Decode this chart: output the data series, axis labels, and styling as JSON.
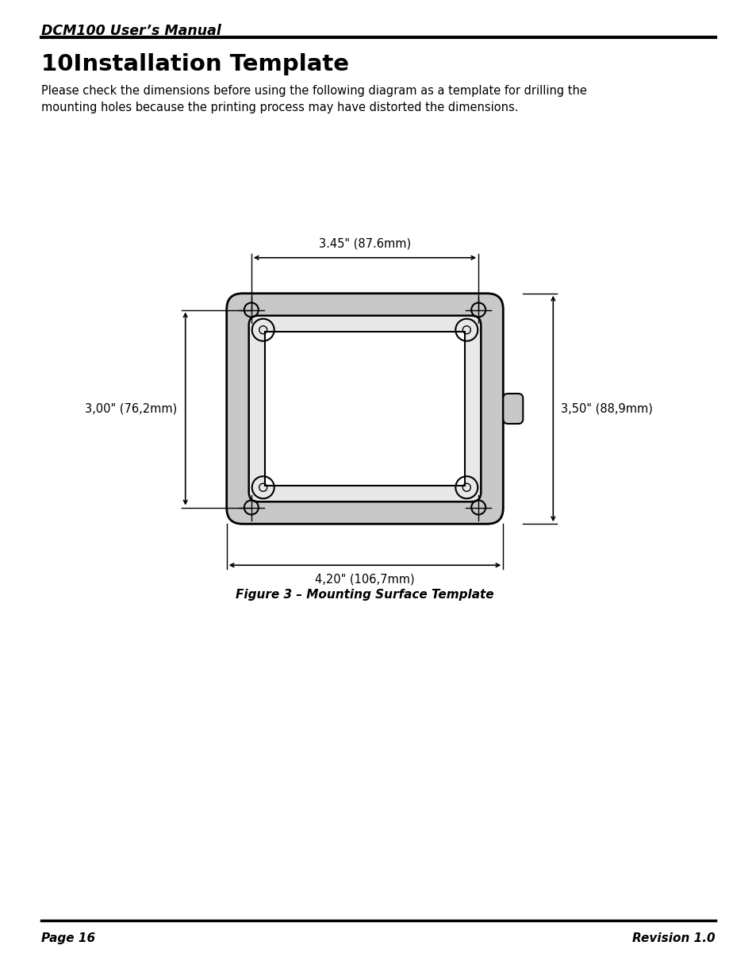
{
  "page_title": "DCM100 User’s Manual",
  "section_title": "10Installation Template",
  "body_text": "Please check the dimensions before using the following diagram as a template for drilling the\nmounting holes because the printing process may have distorted the dimensions.",
  "figure_caption": "Figure 3 – Mounting Surface Template",
  "footer_left": "Page 16",
  "footer_right": "Revision 1.0",
  "dim_top": "3.45\" (87.6mm)",
  "dim_bottom": "4,20\" (106,7mm)",
  "dim_left": "3,00\" (76,2mm)",
  "dim_right": "3,50\" (88,9mm)",
  "bg_color": "#ffffff",
  "line_color": "#000000"
}
